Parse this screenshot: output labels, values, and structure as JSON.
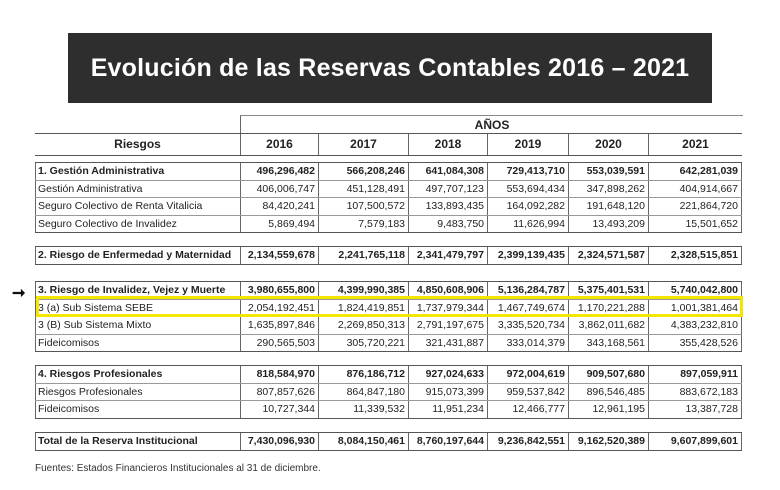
{
  "title": "Evolución de las Reservas Contables 2016 – 2021",
  "header": {
    "group_label": "AÑOS",
    "risk_label": "Riesgos",
    "years": [
      "2016",
      "2017",
      "2018",
      "2019",
      "2020",
      "2021"
    ]
  },
  "groups": [
    {
      "rows": [
        {
          "label": "1. Gestión Administrativa",
          "bold": true,
          "values": [
            "496,296,482",
            "566,208,246",
            "641,084,308",
            "729,413,710",
            "553,039,591",
            "642,281,039"
          ]
        },
        {
          "label": "Gestión Administrativa",
          "values": [
            "406,006,747",
            "451,128,491",
            "497,707,123",
            "553,694,434",
            "347,898,262",
            "404,914,667"
          ]
        },
        {
          "label": "Seguro Colectivo de Renta Vitalicia",
          "values": [
            "84,420,241",
            "107,500,572",
            "133,893,435",
            "164,092,282",
            "191,648,120",
            "221,864,720"
          ]
        },
        {
          "label": "Seguro Colectivo de Invalidez",
          "values": [
            "5,869,494",
            "7,579,183",
            "9,483,750",
            "11,626,994",
            "13,493,209",
            "15,501,652"
          ]
        }
      ]
    },
    {
      "rows": [
        {
          "label": "2. Riesgo de Enfermedad y Maternidad",
          "bold": true,
          "values": [
            "2,134,559,678",
            "2,241,765,118",
            "2,341,479,797",
            "2,399,139,435",
            "2,324,571,587",
            "2,328,515,851"
          ]
        }
      ]
    },
    {
      "rows": [
        {
          "label": "3. Riesgo de Invalidez, Vejez y Muerte",
          "bold": true,
          "values": [
            "3,980,655,800",
            "4,399,990,385",
            "4,850,608,906",
            "5,136,284,787",
            "5,375,401,531",
            "5,740,042,800"
          ]
        },
        {
          "label": "3 (a) Sub Sistema SEBE",
          "values": [
            "2,054,192,451",
            "1,824,419,851",
            "1,737,979,344",
            "1,467,749,674",
            "1,170,221,288",
            "1,001,381,464"
          ]
        },
        {
          "label": "3 (B) Sub Sistema Mixto",
          "values": [
            "1,635,897,846",
            "2,269,850,313",
            "2,791,197,675",
            "3,335,520,734",
            "3,862,011,682",
            "4,383,232,810"
          ]
        },
        {
          "label": "Fideicomisos",
          "values": [
            "290,565,503",
            "305,720,221",
            "321,431,887",
            "333,014,379",
            "343,168,561",
            "355,428,526"
          ]
        }
      ]
    },
    {
      "rows": [
        {
          "label": "4. Riesgos Profesionales",
          "bold": true,
          "values": [
            "818,584,970",
            "876,186,712",
            "927,024,633",
            "972,004,619",
            "909,507,680",
            "897,059,911"
          ]
        },
        {
          "label": "Riesgos Profesionales",
          "values": [
            "807,857,626",
            "864,847,180",
            "915,073,399",
            "959,537,842",
            "896,546,485",
            "883,672,183"
          ]
        },
        {
          "label": "Fideicomisos",
          "values": [
            "10,727,344",
            "11,339,532",
            "11,951,234",
            "12,466,777",
            "12,961,195",
            "13,387,728"
          ]
        }
      ]
    },
    {
      "rows": [
        {
          "label": "Total de la Reserva Institucional",
          "bold": true,
          "values": [
            "7,430,096,930",
            "8,084,150,461",
            "8,760,197,644",
            "9,236,842,551",
            "9,162,520,389",
            "9,607,899,601"
          ]
        }
      ]
    }
  ],
  "highlight_color": "#f5e600",
  "footnote": "Fuentes: Estados Financieros Institucionales al 31 de diciembre."
}
